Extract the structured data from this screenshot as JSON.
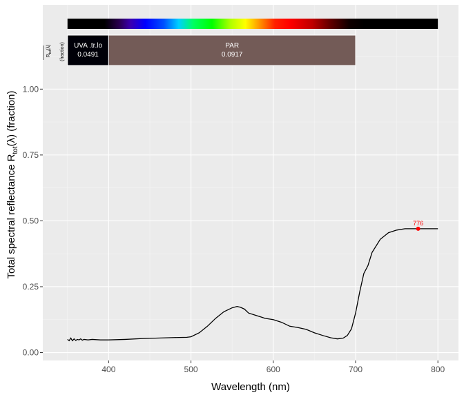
{
  "chart_data": {
    "type": "line",
    "title": "",
    "xlabel": "Wavelength (nm)",
    "ylabel": {
      "main": "Total  spectral  reflectance  R",
      "subscript": "tot",
      "lambda": "(λ)",
      "unit": "  (fraction)"
    },
    "xlim": [
      320,
      825
    ],
    "ylim": [
      -0.03,
      1.32
    ],
    "x_ticks": [
      400,
      500,
      600,
      700,
      800
    ],
    "y_ticks": [
      0.0,
      0.25,
      0.5,
      0.75,
      1.0
    ],
    "x_tick_labels": [
      "400",
      "500",
      "600",
      "700",
      "800"
    ],
    "y_tick_labels": [
      "0.00",
      "0.25",
      "0.50",
      "0.75",
      "1.00"
    ],
    "grid": true,
    "series": [
      {
        "name": "spectrum",
        "color": "#000000",
        "x": [
          350,
          352,
          354,
          356,
          358,
          360,
          362,
          364,
          366,
          368,
          370,
          375,
          380,
          390,
          400,
          420,
          440,
          460,
          480,
          495,
          500,
          510,
          520,
          530,
          540,
          550,
          556,
          560,
          565,
          570,
          580,
          590,
          600,
          610,
          620,
          630,
          640,
          650,
          660,
          670,
          678,
          685,
          690,
          695,
          700,
          705,
          710,
          715,
          720,
          730,
          740,
          750,
          760,
          770,
          776,
          790,
          800
        ],
        "y": [
          0.05,
          0.045,
          0.055,
          0.045,
          0.052,
          0.046,
          0.05,
          0.048,
          0.052,
          0.047,
          0.05,
          0.048,
          0.05,
          0.048,
          0.048,
          0.05,
          0.053,
          0.055,
          0.057,
          0.058,
          0.06,
          0.075,
          0.1,
          0.13,
          0.155,
          0.17,
          0.175,
          0.172,
          0.165,
          0.15,
          0.14,
          0.13,
          0.125,
          0.115,
          0.1,
          0.095,
          0.088,
          0.075,
          0.065,
          0.056,
          0.052,
          0.055,
          0.065,
          0.09,
          0.15,
          0.23,
          0.3,
          0.33,
          0.38,
          0.43,
          0.455,
          0.465,
          0.47,
          0.47,
          0.47,
          0.47,
          0.47
        ]
      }
    ],
    "peak_annotation": {
      "x": 776,
      "y": 0.47,
      "label": "776",
      "color": "#ff0000"
    },
    "spectrum_bar": {
      "from": 350,
      "to": 800
    },
    "bands": [
      {
        "label": "UVA .tr.lo",
        "value": "0.0491",
        "from": 350,
        "to": 400,
        "color": "#000008"
      },
      {
        "label": "PAR",
        "value": "0.0917",
        "from": 400,
        "to": 700,
        "color": "#735b57"
      }
    ],
    "band_y_label": {
      "main": "R",
      "subscript": "tot",
      "lambda": "(λ)",
      "unit": "(fraction)"
    }
  }
}
